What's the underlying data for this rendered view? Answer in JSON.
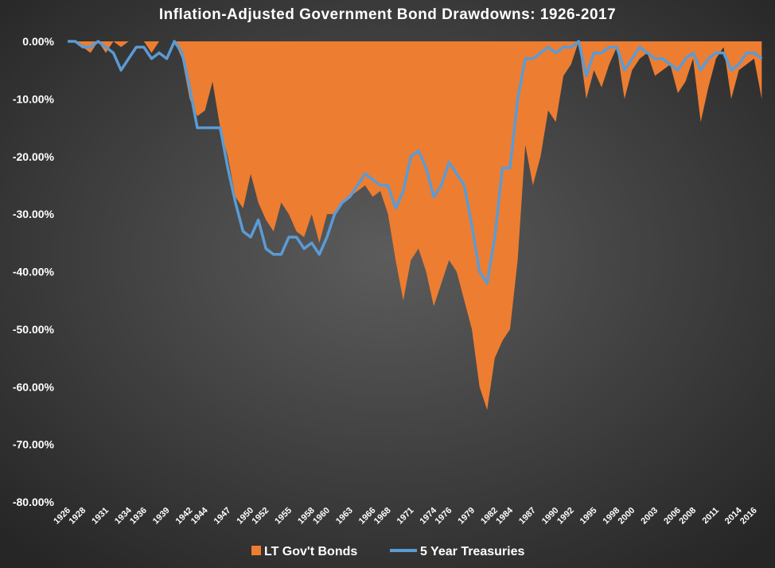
{
  "chart_data": {
    "type": "area-line",
    "title": "Inflation-Adjusted Government Bond Drawdowns: 1926-2017",
    "x": [
      1926,
      1927,
      1928,
      1929,
      1930,
      1931,
      1932,
      1933,
      1934,
      1935,
      1936,
      1937,
      1938,
      1939,
      1940,
      1941,
      1942,
      1943,
      1944,
      1945,
      1946,
      1947,
      1948,
      1949,
      1950,
      1951,
      1952,
      1953,
      1954,
      1955,
      1956,
      1957,
      1958,
      1959,
      1960,
      1961,
      1962,
      1963,
      1964,
      1965,
      1966,
      1967,
      1968,
      1969,
      1970,
      1971,
      1972,
      1973,
      1974,
      1975,
      1976,
      1977,
      1978,
      1979,
      1980,
      1981,
      1982,
      1983,
      1984,
      1985,
      1986,
      1987,
      1988,
      1989,
      1990,
      1991,
      1992,
      1993,
      1994,
      1995,
      1996,
      1997,
      1998,
      1999,
      2000,
      2001,
      2002,
      2003,
      2004,
      2005,
      2006,
      2007,
      2008,
      2009,
      2010,
      2011,
      2012,
      2013,
      2014,
      2015,
      2016,
      2017
    ],
    "series": [
      {
        "name": "LT Gov't Bonds",
        "color": "#ed7d31",
        "kind": "area",
        "values": [
          0,
          0,
          -1,
          -2,
          0,
          -2,
          0,
          -1,
          0,
          0,
          0,
          -2,
          0,
          0,
          0,
          -3,
          -10,
          -13,
          -12,
          -7,
          -15,
          -20,
          -27,
          -29,
          -23,
          -28,
          -31,
          -33,
          -28,
          -30,
          -33,
          -34,
          -30,
          -35,
          -30,
          -30,
          -28,
          -27,
          -26,
          -25,
          -27,
          -26,
          -30,
          -38,
          -45,
          -38,
          -36,
          -40,
          -46,
          -42,
          -38,
          -40,
          -45,
          -50,
          -60,
          -64,
          -55,
          -52,
          -50,
          -38,
          -18,
          -25,
          -20,
          -12,
          -14,
          -6,
          -4,
          0,
          -10,
          -5,
          -8,
          -4,
          -1,
          -10,
          -5,
          -3,
          -2,
          -6,
          -5,
          -4,
          -9,
          -7,
          -3,
          -14,
          -8,
          -3,
          -1,
          -10,
          -5,
          -4,
          -3,
          -10
        ]
      },
      {
        "name": "5 Year Treasuries",
        "color": "#5b9bd5",
        "kind": "line",
        "values": [
          0,
          0,
          -1,
          -1,
          0,
          -1,
          -2,
          -5,
          -3,
          -1,
          -1,
          -3,
          -2,
          -3,
          0,
          -2,
          -8,
          -15,
          -15,
          -15,
          -15,
          -22,
          -28,
          -33,
          -34,
          -31,
          -36,
          -37,
          -37,
          -34,
          -34,
          -36,
          -35,
          -37,
          -34,
          -30,
          -28,
          -27,
          -25,
          -23,
          -24,
          -25,
          -25,
          -29,
          -26,
          -20,
          -19,
          -22,
          -27,
          -25,
          -21,
          -23,
          -25,
          -32,
          -40,
          -42,
          -34,
          -22,
          -22,
          -10,
          -3,
          -3,
          -2,
          -1,
          -2,
          -1,
          -1,
          0,
          -6,
          -2,
          -2,
          -1,
          -1,
          -5,
          -3,
          -1,
          -2,
          -3,
          -3,
          -4,
          -5,
          -3,
          -2,
          -5,
          -3,
          -2,
          -2,
          -5,
          -4,
          -2,
          -2,
          -3
        ]
      }
    ],
    "xlim": [
      1926,
      2017.8
    ],
    "xticks": [
      1926,
      1928,
      1931,
      1934,
      1936,
      1939,
      1942,
      1944,
      1947,
      1950,
      1952,
      1955,
      1958,
      1960,
      1963,
      1966,
      1968,
      1971,
      1974,
      1976,
      1979,
      1982,
      1984,
      1987,
      1990,
      1992,
      1995,
      1998,
      2000,
      2003,
      2006,
      2008,
      2011,
      2014,
      2016
    ],
    "ylim": [
      -80,
      0
    ],
    "yticks": [
      {
        "value": 0,
        "label": "0.00%"
      },
      {
        "value": -10,
        "label": "-10.00%"
      },
      {
        "value": -20,
        "label": "-20.00%"
      },
      {
        "value": -30,
        "label": "-30.00%"
      },
      {
        "value": -40,
        "label": "-40.00%"
      },
      {
        "value": -50,
        "label": "-50.00%"
      },
      {
        "value": -60,
        "label": "-60.00%"
      },
      {
        "value": -70,
        "label": "-70.00%"
      },
      {
        "value": -80,
        "label": "-80.00%"
      }
    ]
  }
}
